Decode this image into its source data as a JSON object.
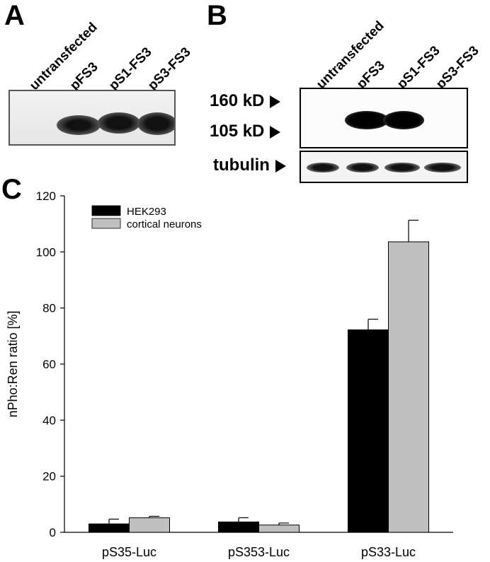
{
  "panel_a": {
    "letter": "A",
    "lanes": [
      "untransfected",
      "pFS3",
      "pS1-FS3",
      "pS3-FS3"
    ]
  },
  "panel_b": {
    "letter": "B",
    "lanes": [
      "untransfected",
      "pFS3",
      "pS1-FS3",
      "pS3-FS3"
    ],
    "markers": [
      "160 kD",
      "105 kD"
    ],
    "loading_label": "tubulin"
  },
  "panel_c": {
    "letter": "C"
  },
  "chart_data": {
    "type": "bar",
    "categories": [
      "pS35-Luc",
      "pS353-Luc",
      "pS33-Luc"
    ],
    "series": [
      {
        "name": "HEK293",
        "values": [
          3,
          3.7,
          72.2
        ],
        "errors": [
          1.7,
          1.5,
          3.8
        ],
        "color": "#000000"
      },
      {
        "name": "cortical neurons",
        "values": [
          5.2,
          2.6,
          103.6
        ],
        "errors": [
          0.5,
          0.7,
          7.7
        ],
        "color": "#c0c0c0"
      }
    ],
    "ylabel": "nPho:Ren ratio [%]",
    "xlabel": "",
    "ylim": [
      0,
      120
    ],
    "yticks": [
      0,
      20,
      40,
      60,
      80,
      100,
      120
    ],
    "legend_position": "top-left",
    "grid": false
  }
}
